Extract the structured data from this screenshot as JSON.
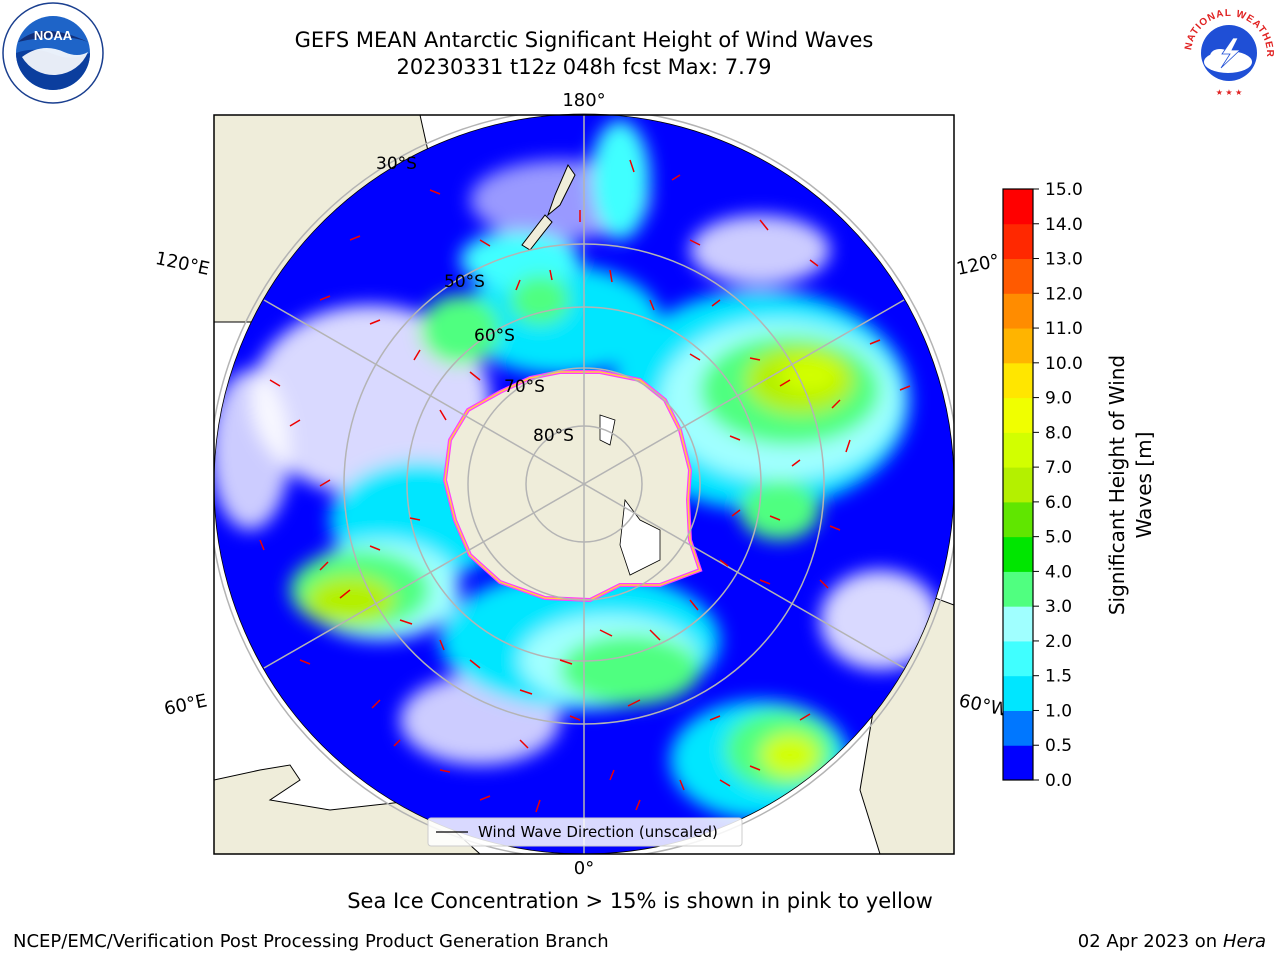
{
  "title": {
    "line1": "GEFS MEAN Antarctic Significant Height of Wind Waves",
    "line2": "20230331 t12z 048h fcst   Max: 7.79"
  },
  "map": {
    "projection": "south-polar-stereographic",
    "lon_labels": {
      "top": "180°",
      "bottom": "0°",
      "upper_left": "120°E",
      "upper_right": "120°",
      "lower_left": "60°E",
      "lower_right": "60°W"
    },
    "lat_labels": [
      "30°S",
      "50°S",
      "60°S",
      "70°S",
      "80°S"
    ],
    "legend": "Wind Wave Direction (unscaled)",
    "colors": {
      "land": "#efedda",
      "ice_pink": "#ff40ff",
      "ice_yellow": "#ffd040",
      "arrow": "#ee0000",
      "graticule": "#b4b4b4"
    }
  },
  "colorbar": {
    "label_line1": "Significant Height of Wind",
    "label_line2": "Waves [m]",
    "ticks": [
      "0.0",
      "0.5",
      "1.0",
      "1.5",
      "2.0",
      "3.0",
      "4.0",
      "5.0",
      "6.0",
      "7.0",
      "8.0",
      "9.0",
      "10.0",
      "11.0",
      "12.0",
      "13.0",
      "14.0",
      "15.0"
    ],
    "colors": [
      "#0000ff",
      "#0077ff",
      "#00e6ff",
      "#40ffff",
      "#a0ffff",
      "#50ff80",
      "#00e600",
      "#60e600",
      "#b4f000",
      "#d2ff00",
      "#f0ff00",
      "#ffe600",
      "#ffb400",
      "#ff8c00",
      "#ff5a00",
      "#ff2800",
      "#ff0000"
    ]
  },
  "logos": {
    "left": "NOAA",
    "right_ring": "NATIONAL WEATHER SERVICE"
  },
  "sea_ice_note": "Sea Ice Concentration > 15% is shown in pink to yellow",
  "footer": {
    "left": "NCEP/EMC/Verification Post Processing Product Generation Branch",
    "right_prefix": "02 Apr 2023 on ",
    "right_italic": "Hera"
  }
}
